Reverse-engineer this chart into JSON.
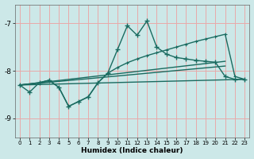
{
  "title": "",
  "xlabel": "Humidex (Indice chaleur)",
  "background_color": "#cce8e8",
  "grid_color": "#e8aaaa",
  "line_color": "#1a6b60",
  "xlim": [
    -0.5,
    23.5
  ],
  "ylim": [
    -9.4,
    -6.6
  ],
  "yticks": [
    -9,
    -8,
    -7
  ],
  "xticks": [
    0,
    1,
    2,
    3,
    4,
    5,
    6,
    7,
    8,
    9,
    10,
    11,
    12,
    13,
    14,
    15,
    16,
    17,
    18,
    19,
    20,
    21,
    22,
    23
  ],
  "line1_x": [
    0,
    1,
    2,
    3,
    4,
    5,
    6,
    7,
    8,
    9,
    10,
    11,
    12,
    13,
    14,
    15,
    16,
    17,
    18,
    19,
    20,
    21,
    22,
    23
  ],
  "line1_y": [
    -8.3,
    -8.45,
    -8.25,
    -8.2,
    -8.35,
    -8.75,
    -8.65,
    -8.55,
    -8.25,
    -8.05,
    -7.55,
    -7.05,
    -7.25,
    -6.95,
    -7.5,
    -7.65,
    -7.72,
    -7.75,
    -7.78,
    -7.8,
    -7.82,
    -8.12,
    -8.18,
    -8.18
  ],
  "line2_x": [
    0,
    2,
    3,
    4,
    5,
    6,
    7,
    8,
    9,
    10,
    11,
    12,
    13,
    14,
    15,
    16,
    17,
    18,
    19,
    20,
    21,
    22,
    23
  ],
  "line2_y": [
    -8.3,
    -8.25,
    -8.2,
    -8.35,
    -8.75,
    -8.65,
    -8.55,
    -8.25,
    -8.05,
    -7.93,
    -7.83,
    -7.75,
    -7.68,
    -7.62,
    -7.56,
    -7.5,
    -7.44,
    -7.38,
    -7.33,
    -7.28,
    -7.23,
    -8.12,
    -8.18
  ],
  "line3_x": [
    0,
    23
  ],
  "line3_y": [
    -8.3,
    -8.18
  ],
  "line4_x": [
    0,
    21
  ],
  "line4_y": [
    -8.3,
    -7.9
  ],
  "line5_x": [
    0,
    21
  ],
  "line5_y": [
    -8.3,
    -7.8
  ]
}
